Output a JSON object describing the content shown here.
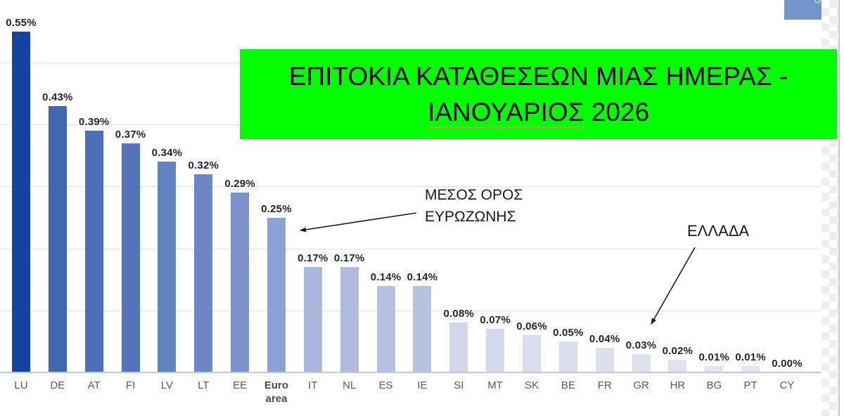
{
  "title_box": {
    "text_line1": "ΕΠΙΤΟΚΙΑ ΚΑΤΑΘΕΣΕΩΝ ΜΙΑΣ ΗΜΕΡΑΣ -",
    "text_line2_underlined": "ΙΑΝΟΥΑΡΙΟΣ",
    "text_line2_rest": " 2026",
    "bg_color": "#00ff00",
    "text_color": "#000000",
    "spellcheck_underline_color": "#ff8080"
  },
  "annotations": {
    "euro_avg": {
      "line1": "ΜΕΣΟΣ ΟΡΟΣ",
      "line2": "ΕΥΡΩΖΩΝΗΣ"
    },
    "greece": {
      "label": "ΕΛΛΑΔΑ"
    }
  },
  "decorations": {
    "top_right_shape_color": "#7295cb",
    "arrow_color": "#1a1a1a",
    "baseline_color": "#bfcbe3",
    "gridline_color": "#e4e4e4"
  },
  "chart_data": {
    "type": "bar",
    "title": "ΕΠΙΤΟΚΙΑ ΚΑΤΑΘΕΣΕΩΝ ΜΙΑΣ ΗΜΕΡΑΣ - ΙΑΝΟΥΑΡΙΟΣ 2026",
    "xlabel": "",
    "ylabel": "",
    "unit": "percent",
    "legend": false,
    "grid": true,
    "ylim": [
      0,
      0.6
    ],
    "gridlines": [
      0.1,
      0.2,
      0.3,
      0.4,
      0.5
    ],
    "categories": [
      "LU",
      "DE",
      "AT",
      "FI",
      "LV",
      "LT",
      "EE",
      "Euro area",
      "IT",
      "NL",
      "ES",
      "IE",
      "SI",
      "MT",
      "SK",
      "BE",
      "FR",
      "GR",
      "HR",
      "BG",
      "PT",
      "CY"
    ],
    "values": [
      0.55,
      0.43,
      0.39,
      0.37,
      0.34,
      0.32,
      0.29,
      0.25,
      0.17,
      0.17,
      0.14,
      0.14,
      0.08,
      0.07,
      0.06,
      0.05,
      0.04,
      0.03,
      0.02,
      0.01,
      0.01,
      0.0
    ],
    "data_labels": [
      "0.55%",
      "0.43%",
      "0.39%",
      "0.37%",
      "0.34%",
      "0.32%",
      "0.29%",
      "0.25%",
      "0.17%",
      "0.17%",
      "0.14%",
      "0.14%",
      "0.08%",
      "0.07%",
      "0.06%",
      "0.05%",
      "0.04%",
      "0.03%",
      "0.02%",
      "0.01%",
      "0.01%",
      "0.00%"
    ],
    "bar_colors": [
      "#1643a3",
      "#4267b2",
      "#4c6fb6",
      "#5274b9",
      "#6282c0",
      "#6a88c4",
      "#7a94cb",
      "#8ca2d2",
      "#acb9dc",
      "#aebbdd",
      "#b5c0e0",
      "#b7c2e1",
      "#d2d8ea",
      "#d5daeb",
      "#d8dcec",
      "#dadeed",
      "#dce0ee",
      "#dee2ee",
      "#e0e3ef",
      "#e2e5f0",
      "#e3e6f0",
      "#e5e7f1"
    ],
    "highlight_category_bold": "Euro area",
    "annotated_points": [
      {
        "category": "Euro area",
        "annotation": "ΜΕΣΟΣ ΟΡΟΣ ΕΥΡΩΖΩΝΗΣ"
      },
      {
        "category": "GR",
        "annotation": "ΕΛΛΑΔΑ"
      }
    ]
  }
}
